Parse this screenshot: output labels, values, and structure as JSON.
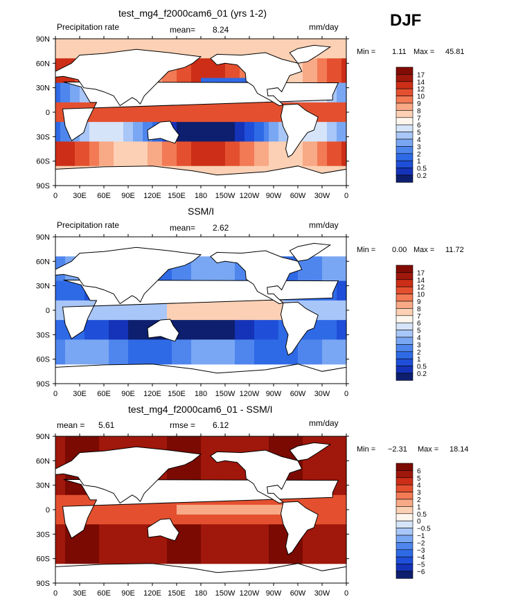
{
  "season": "DJF",
  "colors": {
    "precip_scale": [
      "#0d1f6e",
      "#1533b8",
      "#1f4fd8",
      "#2f6ae6",
      "#4e86ee",
      "#7aa7f3",
      "#a8c6f7",
      "#d6e4fa",
      "#fdf6ee",
      "#fcd0b4",
      "#f8a986",
      "#f27a55",
      "#e4502f",
      "#cc2e17",
      "#a0170b",
      "#820c05"
    ],
    "diff_scale": [
      "#0d1f6e",
      "#1533b8",
      "#1f4fd8",
      "#2f6ae6",
      "#4e86ee",
      "#7aa7f3",
      "#a8c6f7",
      "#d6e4fa",
      "#fdf6ee",
      "#fcd0b4",
      "#f8a986",
      "#f27a55",
      "#e4502f",
      "#cc2e17",
      "#a0170b",
      "#7a0a02"
    ],
    "land": "#ffffff",
    "coast": "#000000"
  },
  "chart_data": [
    {
      "type": "heatmap",
      "title": "test_mg4_f2000cam6_01 (yrs 1-2)",
      "left_label": "Precipitation rate",
      "center_label": "mean=",
      "center_value": "8.24",
      "right_label": "mm/day",
      "min_label": "Min =",
      "min_value": "1.11",
      "max_label": "Max =",
      "max_value": "45.81",
      "y_ticks": [
        "90N",
        "60N",
        "30N",
        "0",
        "30S",
        "60S",
        "90S"
      ],
      "x_ticks": [
        "0",
        "30E",
        "60E",
        "90E",
        "120E",
        "150E",
        "180",
        "150W",
        "120W",
        "90W",
        "60W",
        "30W",
        "0"
      ],
      "colorbar_labels": [
        "17",
        "14",
        "12",
        "10",
        "9",
        "8",
        "7",
        "6",
        "5",
        "4",
        "3",
        "2",
        "1",
        "0.5",
        "0.2"
      ],
      "field": "model"
    },
    {
      "type": "heatmap",
      "title": "SSM/I",
      "left_label": "Precipitation rate",
      "center_label": "mean=",
      "center_value": "2.62",
      "right_label": "mm/day",
      "min_label": "Min =",
      "min_value": "0.00",
      "max_label": "Max =",
      "max_value": "11.72",
      "y_ticks": [
        "90N",
        "60N",
        "30N",
        "0",
        "30S",
        "60S",
        "90S"
      ],
      "x_ticks": [
        "0",
        "30E",
        "60E",
        "90E",
        "120E",
        "150E",
        "180",
        "150W",
        "120W",
        "90W",
        "60W",
        "30W",
        "0"
      ],
      "colorbar_labels": [
        "17",
        "14",
        "12",
        "10",
        "9",
        "8",
        "7",
        "6",
        "5",
        "4",
        "3",
        "2",
        "1",
        "0.5",
        "0.2"
      ],
      "field": "obs"
    },
    {
      "type": "heatmap",
      "title": "test_mg4_f2000cam6_01 - SSM/I",
      "left_label": "mean =",
      "left_value": "5.61",
      "center_label": "rmse =",
      "center_value": "6.12",
      "right_label": "mm/day",
      "min_label": "Min =",
      "min_value": "−2.31",
      "max_label": "Max =",
      "max_value": "18.14",
      "y_ticks": [
        "90N",
        "60N",
        "30N",
        "0",
        "30S",
        "60S",
        "90S"
      ],
      "x_ticks": [
        "0",
        "30E",
        "60E",
        "90E",
        "120E",
        "150E",
        "180",
        "150W",
        "120W",
        "90W",
        "60W",
        "30W",
        "0"
      ],
      "colorbar_labels": [
        "6",
        "5",
        "4",
        "3",
        "2",
        "1",
        "0.5",
        "0",
        "−0.5",
        "−1",
        "−2",
        "−3",
        "−4",
        "−5",
        "−6"
      ],
      "field": "diff"
    }
  ]
}
